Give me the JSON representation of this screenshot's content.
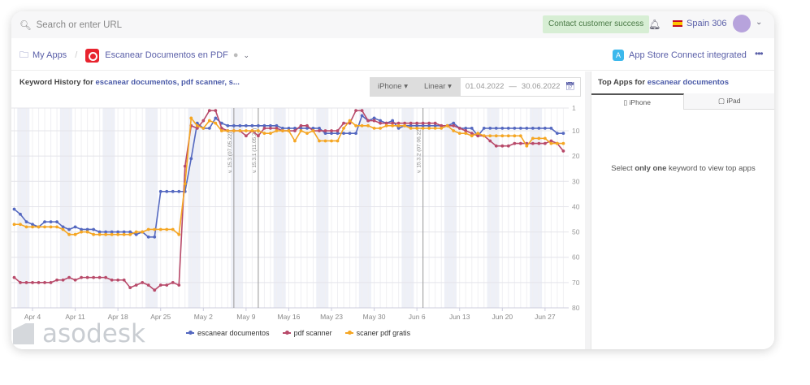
{
  "topbar": {
    "search_placeholder": "Search or enter URL",
    "contact_label": "Contact customer success",
    "country": "Spain 306"
  },
  "breadcrumb": {
    "my_apps": "My Apps",
    "app_name": "Escanear Documentos en PDF",
    "integration": "App Store Connect integrated"
  },
  "keyword_history": {
    "prefix": "Keyword History for ",
    "keywords": "escanear documentos, pdf scanner, s...",
    "device": "iPhone",
    "scale": "Linear",
    "date_from": "01.04.2022",
    "date_to": "30.06.2022"
  },
  "top_apps": {
    "prefix": "Top Apps for ",
    "keyword": "escanear documentos",
    "tabs": [
      "iPhone",
      "iPad"
    ],
    "hint_pre": "Select ",
    "hint_bold": "only one",
    "hint_post": " keyword to view top apps"
  },
  "logo": "asodesk",
  "chart_data": {
    "type": "line",
    "x_start": "2022-04-01",
    "x_end": "2022-06-30",
    "xticks": [
      "Apr 4",
      "Apr 11",
      "Apr 18",
      "Apr 25",
      "May 2",
      "May 9",
      "May 16",
      "May 23",
      "May 30",
      "Jun 6",
      "Jun 13",
      "Jun 20",
      "Jun 27"
    ],
    "yticks": [
      1,
      10,
      20,
      30,
      40,
      50,
      60,
      70,
      80
    ],
    "ylim": [
      1,
      80
    ],
    "y_reversed": true,
    "grid": true,
    "legend": "bottom",
    "annotations": [
      {
        "date": "2022-05-07",
        "label": "v. 15.3 (07.05.22)"
      },
      {
        "date": "2022-05-11",
        "label": "v. 15.3.1 (11.05.22)"
      },
      {
        "date": "2022-06-07",
        "label": "v. 15.3.2 (07.06.22)"
      }
    ],
    "series": [
      {
        "name": "escanear documentos",
        "color": "#5468c0",
        "values": [
          41,
          43,
          46,
          47,
          48,
          46,
          46,
          46,
          48,
          49,
          48,
          49,
          49,
          49,
          50,
          50,
          50,
          50,
          50,
          50,
          51,
          50,
          52,
          52,
          34,
          34,
          34,
          34,
          34,
          21,
          7,
          9,
          9,
          5,
          7,
          8,
          8,
          8,
          8,
          8,
          8,
          8,
          8,
          8,
          9,
          9,
          9,
          9,
          9,
          9,
          9,
          11,
          11,
          11,
          11,
          11,
          11,
          4,
          6,
          5,
          6,
          7,
          6,
          9,
          8,
          8,
          8,
          8,
          8,
          8,
          8,
          8,
          7,
          9,
          9,
          9,
          12,
          9,
          9,
          9,
          9,
          9,
          9,
          9,
          9,
          9,
          9,
          9,
          9,
          11,
          11
        ]
      },
      {
        "name": "pdf scanner",
        "color": "#b84a6a",
        "values": [
          68,
          70,
          70,
          70,
          70,
          70,
          70,
          69,
          69,
          68,
          69,
          68,
          68,
          68,
          68,
          68,
          69,
          69,
          69,
          72,
          71,
          70,
          71,
          73,
          71,
          71,
          70,
          71,
          24,
          8,
          9,
          6,
          2,
          2,
          9,
          10,
          10,
          10,
          12,
          10,
          12,
          9,
          9,
          9,
          10,
          10,
          10,
          8,
          8,
          10,
          10,
          10,
          10,
          10,
          7,
          7,
          2,
          2,
          6,
          6,
          7,
          7,
          7,
          7,
          7,
          7,
          7,
          7,
          7,
          7,
          8,
          8,
          8,
          9,
          10,
          11,
          12,
          12,
          14,
          16,
          16,
          16,
          15,
          15,
          15,
          15,
          15,
          15,
          14,
          15,
          18
        ]
      },
      {
        "name": "scaner pdf gratis",
        "color": "#f5a623",
        "values": [
          47,
          47,
          48,
          48,
          48,
          48,
          48,
          48,
          49,
          51,
          51,
          50,
          50,
          51,
          51,
          51,
          51,
          51,
          51,
          51,
          50,
          50,
          49,
          49,
          49,
          49,
          49,
          51,
          31,
          5,
          8,
          9,
          6,
          7,
          10,
          10,
          10,
          10,
          10,
          10,
          10,
          11,
          11,
          10,
          10,
          10,
          14,
          10,
          11,
          10,
          14,
          14,
          14,
          14,
          9,
          6,
          8,
          8,
          8,
          9,
          9,
          8,
          8,
          8,
          8,
          9,
          9,
          9,
          9,
          9,
          9,
          8,
          10,
          11,
          11,
          12,
          11,
          12,
          12,
          12,
          12,
          12,
          12,
          12,
          16,
          13,
          13,
          13,
          15,
          15,
          15
        ]
      }
    ]
  }
}
